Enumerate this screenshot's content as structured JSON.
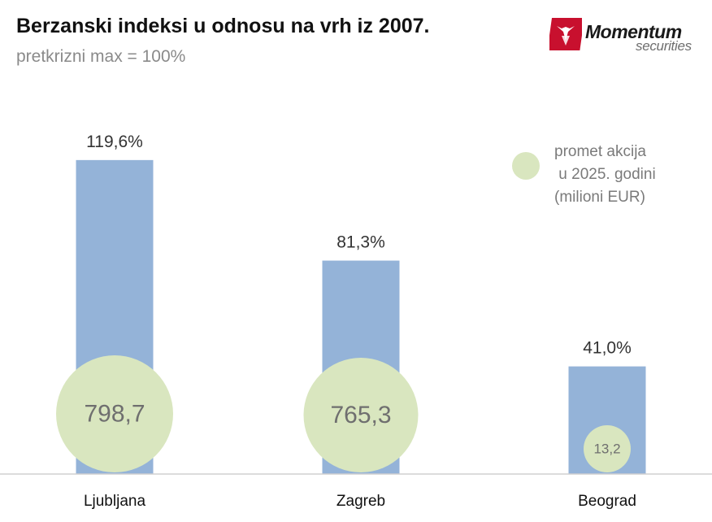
{
  "chart_data": {
    "type": "bar",
    "title": "Berzanski indeksi u odnosu na vrh iz 2007.",
    "subtitle": "pretkrizni max = 100%",
    "categories": [
      "Ljubljana",
      "Zagreb",
      "Beograd"
    ],
    "values": [
      119.6,
      81.3,
      41.0
    ],
    "value_labels": [
      "119,6%",
      "81,3%",
      "41,0%"
    ],
    "ylim": [
      0,
      140
    ],
    "grid": false,
    "bubbles": {
      "name": "promet akcija u 2025. godini (milioni EUR)",
      "values": [
        798.7,
        765.3,
        13.2
      ],
      "labels": [
        "798,7",
        "765,3",
        "13,2"
      ]
    },
    "legend": {
      "placement": "top-right",
      "text": "promet akcija\n u 2025. godini\n(milioni EUR)"
    }
  },
  "logo": {
    "word1": "Momentum",
    "word2": "securities"
  },
  "colors": {
    "bar": "#94b3d8",
    "bubble": "#d9e6bf",
    "axis": "#d0d0d0",
    "title": "#111111",
    "subtitle": "#8a8a8a",
    "value_label": "#333333",
    "bubble_label": "#6f6f6f",
    "logo_red": "#c8102e"
  }
}
